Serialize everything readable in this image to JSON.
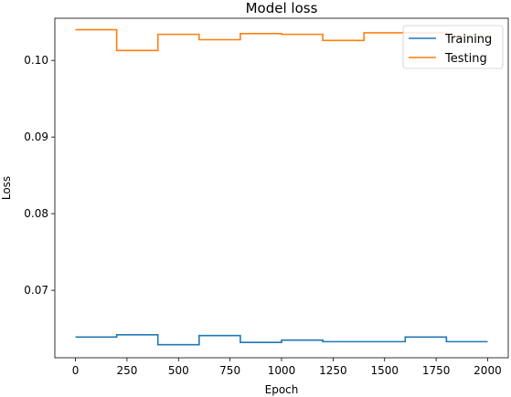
{
  "chart_data": {
    "type": "line",
    "title": "Model loss",
    "xlabel": "Epoch",
    "ylabel": "Loss",
    "xlim": [
      -100,
      2100
    ],
    "ylim": [
      0.0612,
      0.1055
    ],
    "xticks": [
      0,
      250,
      500,
      750,
      1000,
      1250,
      1500,
      1750,
      2000
    ],
    "xtick_labels": [
      "0",
      "250",
      "500",
      "750",
      "1000",
      "1250",
      "1500",
      "1750",
      "2000"
    ],
    "yticks": [
      0.07,
      0.08,
      0.09,
      0.1
    ],
    "ytick_labels": [
      "0.07",
      "0.08",
      "0.09",
      "0.10"
    ],
    "grid": false,
    "legend_position": "top-right",
    "series": [
      {
        "name": "Training",
        "color": "#1f77b4",
        "step": true,
        "x": [
          0,
          200,
          400,
          600,
          800,
          1000,
          1200,
          1400,
          1600,
          1800,
          2000
        ],
        "y": [
          0.0639,
          0.0642,
          0.0629,
          0.0641,
          0.0632,
          0.0635,
          0.0633,
          0.0633,
          0.0639,
          0.0633,
          0.0633
        ]
      },
      {
        "name": "Testing",
        "color": "#ff7f0e",
        "step": true,
        "x": [
          0,
          200,
          400,
          600,
          800,
          1000,
          1200,
          1400,
          1600,
          1800,
          2000
        ],
        "y": [
          0.104,
          0.1013,
          0.1034,
          0.1027,
          0.1035,
          0.1034,
          0.1026,
          0.1036,
          0.1036,
          0.1031,
          0.1031
        ]
      }
    ]
  }
}
